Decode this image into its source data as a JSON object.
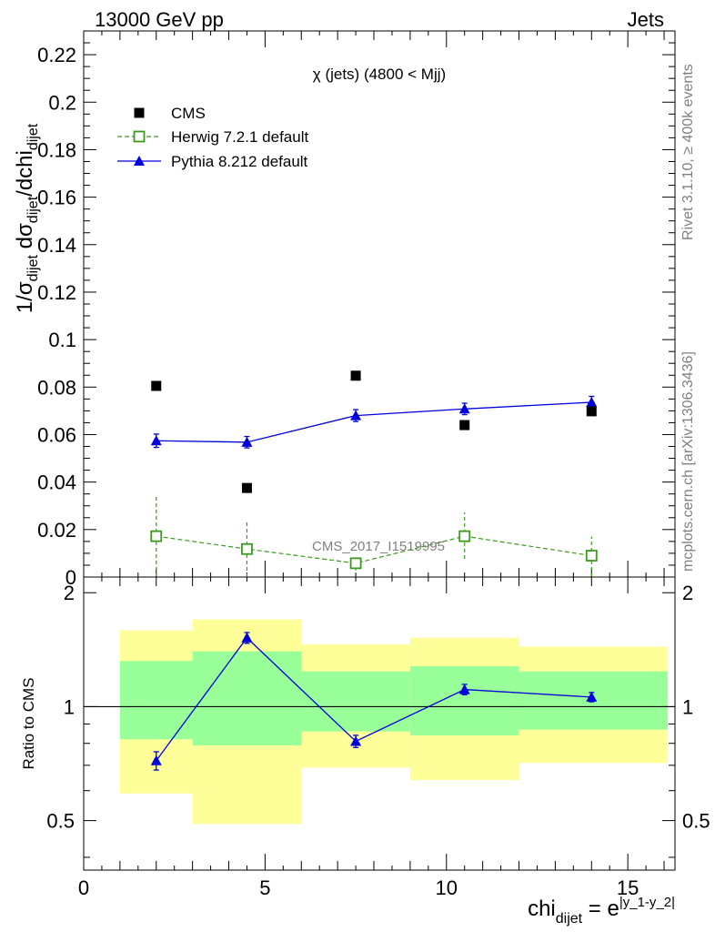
{
  "header": {
    "left": "13000 GeV pp",
    "right": "Jets"
  },
  "side": {
    "rivet": "Rivet 3.1.10, ≥ 400k events",
    "mcplots": "mcplots.cern.ch [arXiv:1306.3436]"
  },
  "watermark": "CMS_2017_I1519995",
  "chart_data": [
    {
      "type": "scatter",
      "title": "χ (jets) (4800 < Mjj)",
      "ylabel": "1/σdijet dσdijet/dchidijet",
      "ylim": [
        0,
        0.23
      ],
      "xlim": [
        0,
        16.3
      ],
      "yticks": [
        "0",
        "0.02",
        "0.04",
        "0.06",
        "0.08",
        "0.1",
        "0.12",
        "0.14",
        "0.16",
        "0.18",
        "0.2",
        "0.22"
      ],
      "ytick_values": [
        0,
        0.02,
        0.04,
        0.06,
        0.08,
        0.1,
        0.12,
        0.14,
        0.16,
        0.18,
        0.2,
        0.22
      ],
      "legend": {
        "placement": "top-left"
      },
      "series": [
        {
          "name": "CMS",
          "color": "#000000",
          "marker": "square",
          "x": [
            2,
            4.5,
            7.5,
            10.5,
            14
          ],
          "y": [
            0.0805,
            0.0375,
            0.0848,
            0.064,
            0.0698
          ]
        },
        {
          "name": "Herwig 7.2.1 default",
          "color": "#3a9a1c",
          "marker": "open-square",
          "dashed": true,
          "x": [
            2,
            4.5,
            7.5,
            10.5,
            14
          ],
          "y": [
            0.0172,
            0.0118,
            0.0058,
            0.0172,
            0.009
          ],
          "err_low": [
            0.0172,
            0.0118,
            0.003,
            0.0095,
            0.009
          ],
          "err_high": [
            0.0175,
            0.0115,
            0.002,
            0.01,
            0.008
          ]
        },
        {
          "name": "Pythia 8.212 default",
          "color": "#0000dd",
          "marker": "triangle",
          "x": [
            2,
            4.5,
            7.5,
            10.5,
            14
          ],
          "y": [
            0.0574,
            0.0568,
            0.068,
            0.0708,
            0.0736
          ],
          "err": [
            0.0028,
            0.0024,
            0.0025,
            0.0024,
            0.0025
          ]
        }
      ]
    },
    {
      "type": "scatter",
      "ylabel": "Ratio to CMS",
      "ylim": [
        0.37,
        2.2
      ],
      "log_y": true,
      "xlabel": "chidijet = e|y_1-y_2|",
      "xlim": [
        0,
        16.3
      ],
      "xticks": [
        "0",
        "5",
        "10",
        "15"
      ],
      "xtick_values": [
        0,
        5,
        10,
        15
      ],
      "yticks": [
        "0.5",
        "1",
        "2"
      ],
      "ytick_values": [
        0.5,
        1,
        2
      ],
      "bands": [
        {
          "x0": 1,
          "x1": 3,
          "yellow": [
            0.59,
            1.59
          ],
          "green": [
            0.82,
            1.32
          ]
        },
        {
          "x0": 3,
          "x1": 6,
          "yellow": [
            0.49,
            1.7
          ],
          "green": [
            0.79,
            1.4
          ]
        },
        {
          "x0": 6,
          "x1": 9,
          "yellow": [
            0.69,
            1.46
          ],
          "green": [
            0.86,
            1.24
          ]
        },
        {
          "x0": 9,
          "x1": 12,
          "yellow": [
            0.64,
            1.52
          ],
          "green": [
            0.84,
            1.28
          ]
        },
        {
          "x0": 12,
          "x1": 16.1,
          "yellow": [
            0.71,
            1.44
          ],
          "green": [
            0.87,
            1.24
          ]
        }
      ],
      "band_colors": {
        "yellow": "#ffff99",
        "green": "#99ff99"
      },
      "series": [
        {
          "name": "Pythia 8.212 default",
          "color": "#0000dd",
          "marker": "triangle",
          "x": [
            2,
            4.5,
            7.5,
            10.5,
            14
          ],
          "y": [
            0.72,
            1.52,
            0.81,
            1.11,
            1.06
          ],
          "err": [
            0.04,
            0.05,
            0.03,
            0.035,
            0.03
          ]
        }
      ]
    }
  ]
}
